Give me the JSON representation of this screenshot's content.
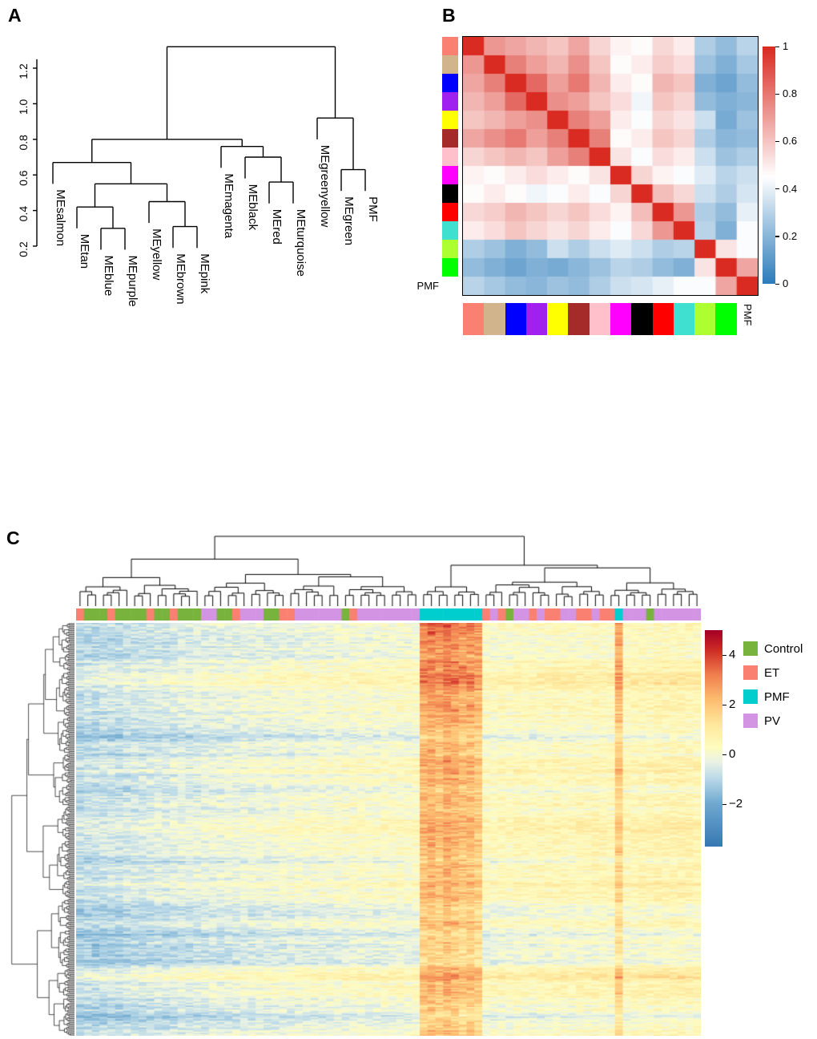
{
  "chart_data": [
    {
      "type": "dendrogram",
      "panel": "A",
      "label": "A",
      "y_ticks": [
        "0.2",
        "0.4",
        "0.6",
        "0.8",
        "1.0",
        "1.2"
      ],
      "y_tick_values": [
        0.2,
        0.4,
        0.6,
        0.8,
        1.0,
        1.2
      ],
      "leaves": [
        "MEsalmon",
        "MEtan",
        "MEblue",
        "MEpurple",
        "MEyellow",
        "MEbrown",
        "MEpink",
        "MEmagenta",
        "MEblack",
        "MEred",
        "MEturquoise",
        "MEgreenyellow",
        "MEgreen",
        "PMF"
      ],
      "tree": {
        "h": 1.32,
        "children": [
          {
            "h": 0.8,
            "children": [
              {
                "h": 0.67,
                "children": [
                  {
                    "leaf": "MEsalmon"
                  },
                  {
                    "h": 0.55,
                    "children": [
                      {
                        "h": 0.42,
                        "children": [
                          {
                            "leaf": "MEtan"
                          },
                          {
                            "h": 0.3,
                            "children": [
                              {
                                "leaf": "MEblue"
                              },
                              {
                                "leaf": "MEpurple"
                              }
                            ]
                          }
                        ]
                      },
                      {
                        "h": 0.45,
                        "children": [
                          {
                            "leaf": "MEyellow"
                          },
                          {
                            "h": 0.31,
                            "children": [
                              {
                                "leaf": "MEbrown"
                              },
                              {
                                "leaf": "MEpink"
                              }
                            ]
                          }
                        ]
                      }
                    ]
                  }
                ]
              },
              {
                "h": 0.76,
                "children": [
                  {
                    "leaf": "MEmagenta"
                  },
                  {
                    "h": 0.7,
                    "children": [
                      {
                        "leaf": "MEblack"
                      },
                      {
                        "h": 0.56,
                        "children": [
                          {
                            "leaf": "MEred"
                          },
                          {
                            "leaf": "MEturquoise"
                          }
                        ]
                      }
                    ]
                  }
                ]
              }
            ]
          },
          {
            "h": 0.92,
            "children": [
              {
                "leaf": "MEgreenyellow"
              },
              {
                "h": 0.63,
                "children": [
                  {
                    "leaf": "MEgreen"
                  },
                  {
                    "leaf": "PMF"
                  }
                ]
              }
            ]
          }
        ]
      }
    },
    {
      "type": "heatmap",
      "panel": "B",
      "label": "B",
      "trait_label": "PMF",
      "modules": [
        {
          "name": "salmon",
          "color": "#FA8072"
        },
        {
          "name": "tan",
          "color": "#D2B48C"
        },
        {
          "name": "blue",
          "color": "#0000FF"
        },
        {
          "name": "purple",
          "color": "#A020F0"
        },
        {
          "name": "yellow",
          "color": "#FFFF00"
        },
        {
          "name": "brown",
          "color": "#A52A2A"
        },
        {
          "name": "pink",
          "color": "#FFC0CB"
        },
        {
          "name": "magenta",
          "color": "#FF00FF"
        },
        {
          "name": "black",
          "color": "#000000"
        },
        {
          "name": "red",
          "color": "#FF0000"
        },
        {
          "name": "turquoise",
          "color": "#40E0D0"
        },
        {
          "name": "greenyellow",
          "color": "#ADFF2F"
        },
        {
          "name": "green",
          "color": "#00FF00"
        }
      ],
      "row_order": [
        "salmon",
        "tan",
        "blue",
        "purple",
        "yellow",
        "brown",
        "pink",
        "magenta",
        "black",
        "red",
        "turquoise",
        "greenyellow",
        "green",
        "PMF"
      ],
      "matrix": [
        [
          1.0,
          0.72,
          0.68,
          0.64,
          0.6,
          0.68,
          0.56,
          0.48,
          0.46,
          0.55,
          0.5,
          0.28,
          0.22,
          0.3
        ],
        [
          0.72,
          1.0,
          0.78,
          0.7,
          0.64,
          0.74,
          0.6,
          0.46,
          0.5,
          0.58,
          0.54,
          0.24,
          0.18,
          0.26
        ],
        [
          0.68,
          0.78,
          1.0,
          0.84,
          0.7,
          0.8,
          0.64,
          0.5,
          0.46,
          0.64,
          0.6,
          0.18,
          0.14,
          0.22
        ],
        [
          0.64,
          0.7,
          0.84,
          1.0,
          0.74,
          0.7,
          0.6,
          0.54,
          0.42,
          0.6,
          0.56,
          0.22,
          0.18,
          0.2
        ],
        [
          0.6,
          0.64,
          0.7,
          0.74,
          1.0,
          0.78,
          0.7,
          0.5,
          0.44,
          0.56,
          0.52,
          0.34,
          0.16,
          0.24
        ],
        [
          0.68,
          0.74,
          0.8,
          0.7,
          0.78,
          1.0,
          0.78,
          0.46,
          0.5,
          0.6,
          0.56,
          0.28,
          0.2,
          0.22
        ],
        [
          0.56,
          0.6,
          0.64,
          0.6,
          0.7,
          0.78,
          1.0,
          0.52,
          0.44,
          0.54,
          0.5,
          0.34,
          0.24,
          0.28
        ],
        [
          0.48,
          0.46,
          0.5,
          0.54,
          0.5,
          0.46,
          0.52,
          1.0,
          0.56,
          0.48,
          0.44,
          0.38,
          0.3,
          0.34
        ],
        [
          0.46,
          0.5,
          0.46,
          0.42,
          0.44,
          0.5,
          0.44,
          0.56,
          1.0,
          0.62,
          0.55,
          0.34,
          0.28,
          0.36
        ],
        [
          0.55,
          0.58,
          0.64,
          0.6,
          0.56,
          0.6,
          0.54,
          0.48,
          0.62,
          1.0,
          0.72,
          0.28,
          0.22,
          0.4
        ],
        [
          0.5,
          0.54,
          0.6,
          0.56,
          0.52,
          0.56,
          0.5,
          0.44,
          0.55,
          0.72,
          1.0,
          0.3,
          0.18,
          0.44
        ],
        [
          0.28,
          0.24,
          0.18,
          0.22,
          0.34,
          0.28,
          0.34,
          0.38,
          0.34,
          0.28,
          0.3,
          1.0,
          0.52,
          0.44
        ],
        [
          0.22,
          0.18,
          0.14,
          0.18,
          0.16,
          0.2,
          0.24,
          0.3,
          0.28,
          0.22,
          0.18,
          0.52,
          1.0,
          0.68
        ],
        [
          0.3,
          0.26,
          0.22,
          0.2,
          0.24,
          0.22,
          0.28,
          0.34,
          0.36,
          0.4,
          0.44,
          0.44,
          0.68,
          1.0
        ]
      ],
      "colormap": [
        [
          0,
          "#2C7CBB"
        ],
        [
          0.45,
          "#FFFFFF"
        ],
        [
          1,
          "#D92B21"
        ]
      ],
      "colorbar_ticks": [
        "1",
        "0.8",
        "0.6",
        "0.4",
        "0.2",
        "0"
      ],
      "colorbar_tick_values": [
        1,
        0.8,
        0.6,
        0.4,
        0.2,
        0
      ]
    },
    {
      "type": "heatmap",
      "panel": "C",
      "label": "C",
      "legend": [
        {
          "name": "Control",
          "color": "#78B33E"
        },
        {
          "name": "ET",
          "color": "#FA8072"
        },
        {
          "name": "PMF",
          "color": "#00CDCD"
        },
        {
          "name": "PV",
          "color": "#D494E4"
        }
      ],
      "columns": [
        "ET",
        "Control",
        "Control",
        "Control",
        "ET",
        "Control",
        "Control",
        "Control",
        "Control",
        "ET",
        "Control",
        "Control",
        "ET",
        "Control",
        "Control",
        "Control",
        "PV",
        "PV",
        "Control",
        "Control",
        "ET",
        "PV",
        "PV",
        "PV",
        "Control",
        "Control",
        "ET",
        "ET",
        "PV",
        "PV",
        "PV",
        "PV",
        "PV",
        "PV",
        "Control",
        "ET",
        "PV",
        "PV",
        "PV",
        "PV",
        "PV",
        "PV",
        "PV",
        "PV",
        "PMF",
        "PMF",
        "PMF",
        "PMF",
        "PMF",
        "PMF",
        "PMF",
        "PMF",
        "ET",
        "PV",
        "ET",
        "Control",
        "PV",
        "PV",
        "ET",
        "PV",
        "ET",
        "ET",
        "PV",
        "PV",
        "ET",
        "ET",
        "PV",
        "ET",
        "ET",
        "PMF",
        "PV",
        "PV",
        "PV",
        "Control",
        "PV",
        "PV",
        "PV",
        "PV",
        "PV",
        "PV"
      ],
      "column_base": [
        -1.0,
        -0.9,
        -0.95,
        -0.85,
        -0.8,
        -0.9,
        -0.75,
        -0.7,
        -0.75,
        -0.65,
        -0.6,
        -0.65,
        -0.55,
        -0.5,
        -0.55,
        -0.45,
        -0.4,
        -0.35,
        -0.4,
        -0.3,
        -0.35,
        -0.25,
        -0.3,
        -0.2,
        -0.25,
        -0.2,
        -0.15,
        -0.2,
        -0.1,
        -0.15,
        -0.1,
        -0.05,
        -0.1,
        0,
        -0.05,
        0,
        0.05,
        0,
        -0.05,
        0.05,
        0,
        0.1,
        0.05,
        0.1,
        1.9,
        2.1,
        1.8,
        2.2,
        2.0,
        1.7,
        1.9,
        1.6,
        0.2,
        0.15,
        0.25,
        0.2,
        0.3,
        0.25,
        0.2,
        0.3,
        0.25,
        0.35,
        0.3,
        0.25,
        0.35,
        0.3,
        0.4,
        0.35,
        0.3,
        1.5,
        0.35,
        0.4,
        0.45,
        0.4,
        0.5,
        0.45,
        0.5,
        0.55,
        0.5,
        0.45
      ],
      "rows": 300,
      "seed": 42,
      "value_range": [
        -3.7,
        5
      ],
      "colormap": [
        [
          -3.7,
          "#3878B4"
        ],
        [
          -2,
          "#6FA8CE"
        ],
        [
          -1,
          "#B8D8E8"
        ],
        [
          -0.3,
          "#EAF3E4"
        ],
        [
          0.3,
          "#FEFCC0"
        ],
        [
          1.2,
          "#FEE89C"
        ],
        [
          2.2,
          "#FDBE70"
        ],
        [
          3.2,
          "#F1804E"
        ],
        [
          4.2,
          "#CE2D26"
        ],
        [
          5,
          "#A50026"
        ]
      ],
      "colorbar_ticks": [
        "4",
        "2",
        "0",
        "−2"
      ],
      "colorbar_tick_values": [
        4,
        2,
        0,
        -2
      ]
    }
  ]
}
